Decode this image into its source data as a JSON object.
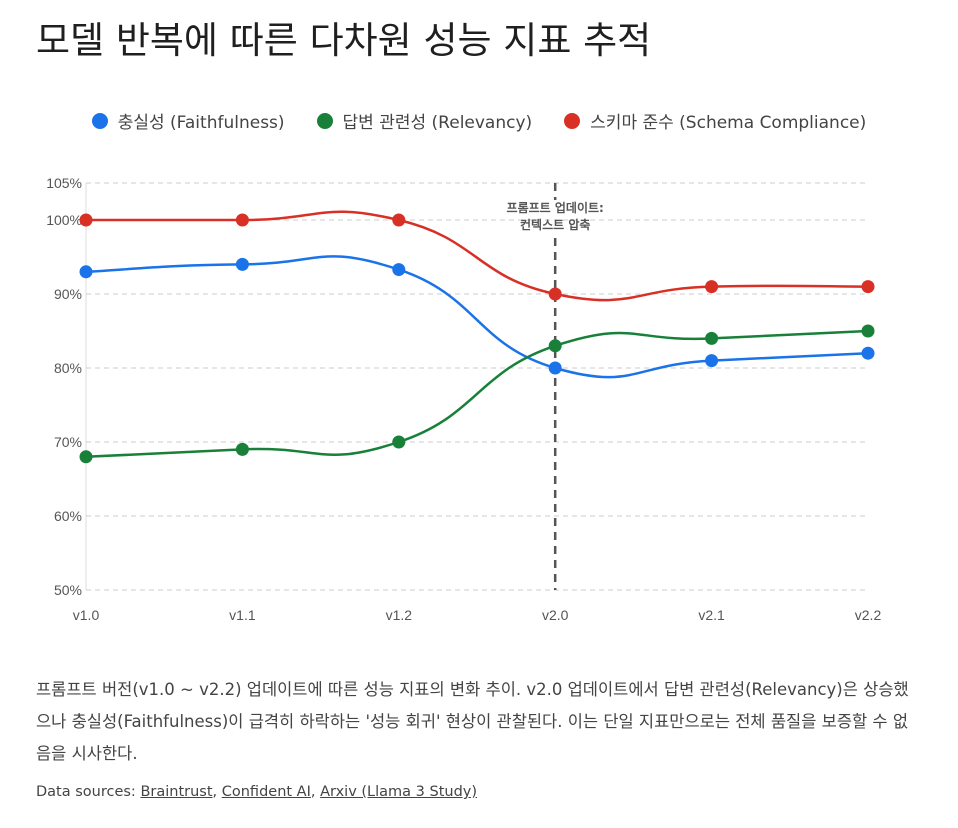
{
  "title": "모델 반복에 따른 다차원 성능 지표 추적",
  "chart_data": {
    "type": "line",
    "title": "모델 반복에 따른 다차원 성능 지표 추적",
    "categories": [
      "v1.0",
      "v1.1",
      "v1.2",
      "v2.0",
      "v2.1",
      "v2.2"
    ],
    "y_ticks": [
      "50%",
      "60%",
      "70%",
      "80%",
      "90%",
      "100%",
      "105%"
    ],
    "y_tick_values": [
      50,
      60,
      70,
      80,
      90,
      100,
      105
    ],
    "ylim": [
      50,
      105
    ],
    "grid": true,
    "legend_position": "top",
    "series": [
      {
        "name": "충실성 (Faithfulness)",
        "color": "#1a73e8",
        "values": [
          93,
          94,
          93.3,
          80,
          81,
          82
        ]
      },
      {
        "name": "답변 관련성 (Relevancy)",
        "color": "#188038",
        "values": [
          68,
          69,
          70,
          83,
          84,
          85
        ]
      },
      {
        "name": "스키마 준수 (Schema Compliance)",
        "color": "#d93025",
        "values": [
          100,
          100,
          100,
          90,
          91,
          91
        ]
      }
    ],
    "annotation": {
      "at": "v2.0",
      "lines": [
        "프롬프트 업데이트:",
        "컨텍스트 압축"
      ]
    }
  },
  "caption": "프롬프트 버전(v1.0 ~ v2.2) 업데이트에 따른 성능 지표의 변화 추이. v2.0 업데이트에서 답변 관련성(Relevancy)은 상승했으나 충실성(Faithfulness)이 급격히 하락하는 '성능 회귀' 현상이 관찰된다. 이는 단일 지표만으로는 전체 품질을 보증할 수 없음을 시사한다.",
  "sources": {
    "label": "Data sources:",
    "links": [
      "Braintrust",
      "Confident AI",
      "Arxiv (Llama 3 Study)"
    ]
  }
}
